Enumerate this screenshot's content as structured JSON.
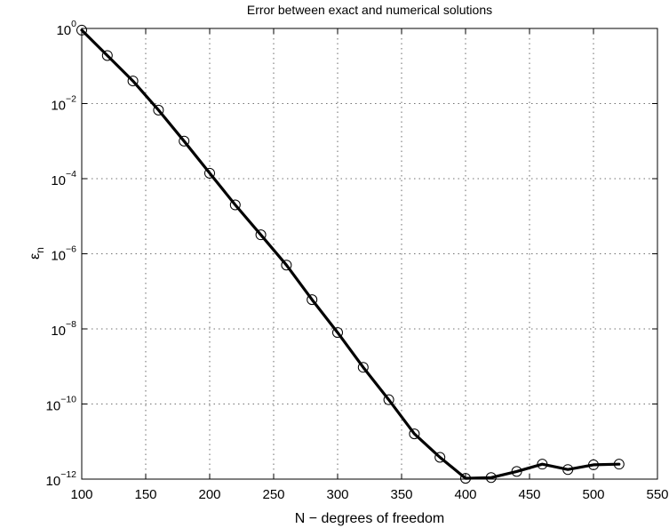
{
  "chart_data": {
    "type": "line",
    "title": "Error between exact and numerical solutions",
    "xlabel": "N − degrees of freedom",
    "ylabel": {
      "base": "ε",
      "sub": "n"
    },
    "xlim": [
      100,
      550
    ],
    "ylim": [
      1e-12,
      1
    ],
    "yscale": "log",
    "grid": true,
    "xticks": [
      {
        "value": 100,
        "label": "100"
      },
      {
        "value": 150,
        "label": "150"
      },
      {
        "value": 200,
        "label": "200"
      },
      {
        "value": 250,
        "label": "250"
      },
      {
        "value": 300,
        "label": "300"
      },
      {
        "value": 350,
        "label": "350"
      },
      {
        "value": 400,
        "label": "400"
      },
      {
        "value": 450,
        "label": "450"
      },
      {
        "value": 500,
        "label": "500"
      },
      {
        "value": 550,
        "label": "550"
      }
    ],
    "yticks": [
      {
        "value": 1,
        "base": "10",
        "exp": "0"
      },
      {
        "value": 0.01,
        "base": "10",
        "exp": "−2"
      },
      {
        "value": 0.0001,
        "base": "10",
        "exp": "−4"
      },
      {
        "value": 1e-06,
        "base": "10",
        "exp": "−6"
      },
      {
        "value": 1e-08,
        "base": "10",
        "exp": "−8"
      },
      {
        "value": 1e-10,
        "base": "10",
        "exp": "−10"
      },
      {
        "value": 1e-12,
        "base": "10",
        "exp": "−12"
      }
    ],
    "series": [
      {
        "line_color": "#000000",
        "marker": "circle",
        "x": [
          100,
          120,
          140,
          160,
          180,
          200,
          220,
          240,
          260,
          280,
          300,
          320,
          340,
          360,
          380,
          400,
          420,
          440,
          460,
          480,
          500,
          520
        ],
        "y": [
          0.9,
          0.19,
          0.04,
          0.0067,
          0.001,
          0.00014,
          2e-05,
          3.2e-06,
          5e-07,
          6e-08,
          8e-09,
          9.5e-10,
          1.3e-10,
          1.6e-11,
          3.8e-12,
          1.05e-12,
          1.1e-12,
          1.6e-12,
          2.5e-12,
          1.8e-12,
          2.4e-12,
          2.5e-12
        ]
      }
    ]
  }
}
